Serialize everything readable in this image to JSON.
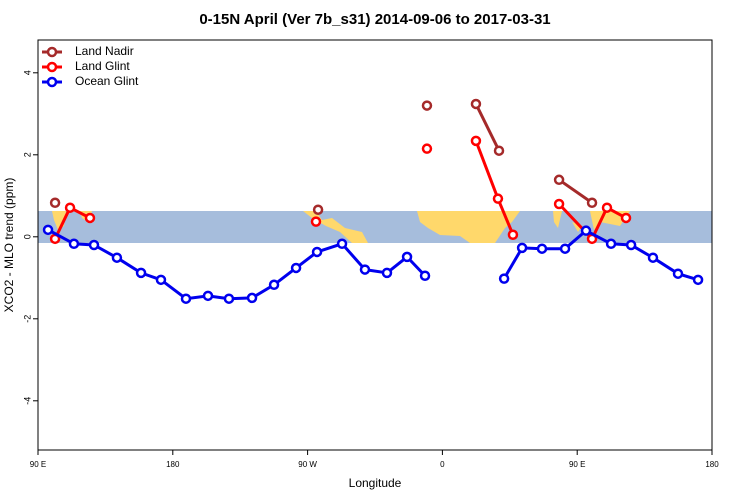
{
  "chart_data": {
    "type": "line",
    "title": "0-15N April (Ver 7b_s31)   2014-09-06 to 2017-03-31",
    "xlabel": "Longitude",
    "ylabel": "XCO2 - MLO trend (ppm)",
    "xlim": [
      90,
      540
    ],
    "xticks": [
      {
        "value": 90,
        "label": "90 E"
      },
      {
        "value": 180,
        "label": "180"
      },
      {
        "value": 270,
        "label": "90 W"
      },
      {
        "value": 360,
        "label": "0"
      },
      {
        "value": 450,
        "label": "90 E"
      },
      {
        "value": 540,
        "label": "180"
      }
    ],
    "ylim": [
      -5.2,
      4.8
    ],
    "yticks": [
      -4,
      -2,
      0,
      2,
      4
    ],
    "legend": "top-left",
    "series": [
      {
        "name": "Land Nadir",
        "color": "#a52a2a",
        "x": [
          101.4,
          null,
          277,
          null,
          349.7,
          null,
          382.4,
          397.8,
          null,
          437.9,
          459.9
        ],
        "values": [
          0.83,
          null,
          0.66,
          null,
          3.2,
          null,
          3.24,
          2.1,
          null,
          1.39,
          0.83
        ]
      },
      {
        "name": "Land Glint",
        "color": "#ff0000",
        "x": [
          101.4,
          111.4,
          124.7,
          null,
          275.6,
          null,
          349.7,
          null,
          382.4,
          397.1,
          407.1,
          null,
          437.9,
          459.9,
          469.9,
          482.6
        ],
        "values": [
          -0.05,
          0.71,
          0.46,
          null,
          0.37,
          null,
          2.15,
          null,
          2.34,
          0.93,
          0.05,
          null,
          0.8,
          -0.05,
          0.71,
          0.46
        ]
      },
      {
        "name": "Ocean Glint",
        "color": "#0000ee",
        "x": [
          96.7,
          114,
          127.4,
          142.7,
          158.8,
          172.1,
          188.8,
          203.5,
          217.5,
          232.9,
          247.6,
          262.3,
          276.3,
          293,
          308.3,
          323,
          336.4,
          348.4,
          null,
          401.2,
          413.2,
          426.5,
          441.9,
          455.9,
          472.6,
          486,
          500.6,
          517.3,
          530.7
        ],
        "values": [
          0.17,
          -0.17,
          -0.2,
          -0.51,
          -0.88,
          -1.05,
          -1.51,
          -1.44,
          -1.51,
          -1.49,
          -1.17,
          -0.76,
          -0.37,
          -0.17,
          -0.8,
          -0.88,
          -0.49,
          -0.95,
          null,
          -1.02,
          -0.27,
          -0.29,
          -0.29,
          0.15,
          -0.17,
          -0.2,
          -0.51,
          -0.9,
          -1.05
        ]
      }
    ]
  }
}
